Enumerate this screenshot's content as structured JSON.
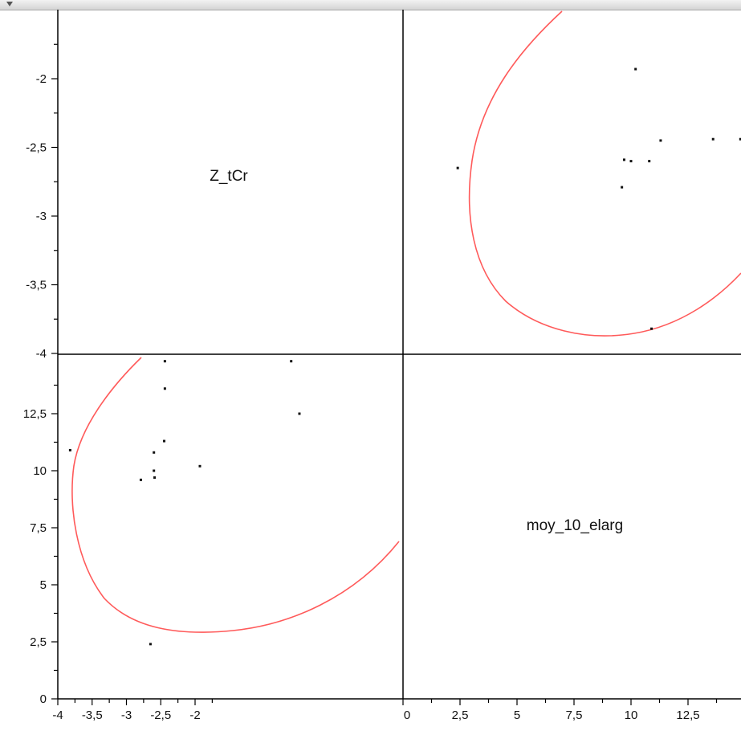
{
  "chart_data": {
    "type": "scatter",
    "variables": [
      "Z_tCr",
      "moy_10_elarg"
    ],
    "x_axis": {
      "lower_left_ticks": [
        "-4",
        "-3,5",
        "-3",
        "-2,5",
        "-2",
        "0"
      ],
      "lower_right_ticks": [
        "2,5",
        "5",
        "7,5",
        "10",
        "12,5"
      ]
    },
    "y_axis": {
      "upper_left_ticks": [
        "-2",
        "-2,5",
        "-3",
        "-3,5",
        "-4"
      ],
      "lower_left_ticks": [
        "12,5",
        "10",
        "7,5",
        "5",
        "2,5",
        "0"
      ]
    },
    "points": [
      {
        "Z_tCr": -3.82,
        "moy_10_elarg": 10.9
      },
      {
        "Z_tCr": -2.79,
        "moy_10_elarg": 9.6
      },
      {
        "Z_tCr": -2.6,
        "moy_10_elarg": 10.0
      },
      {
        "Z_tCr": -2.59,
        "moy_10_elarg": 9.7
      },
      {
        "Z_tCr": -2.6,
        "moy_10_elarg": 10.8
      },
      {
        "Z_tCr": -2.45,
        "moy_10_elarg": 11.3
      },
      {
        "Z_tCr": -2.44,
        "moy_10_elarg": 13.6
      },
      {
        "Z_tCr": -2.44,
        "moy_10_elarg": 14.8
      },
      {
        "Z_tCr": -1.93,
        "moy_10_elarg": 10.2
      },
      {
        "Z_tCr": -0.6,
        "moy_10_elarg": 14.8
      },
      {
        "Z_tCr": -0.48,
        "moy_10_elarg": 12.5
      },
      {
        "Z_tCr": -2.65,
        "moy_10_elarg": 2.4
      }
    ],
    "ellipse_color": "#ff5a5a",
    "point_color": "#111111",
    "grid": false
  }
}
